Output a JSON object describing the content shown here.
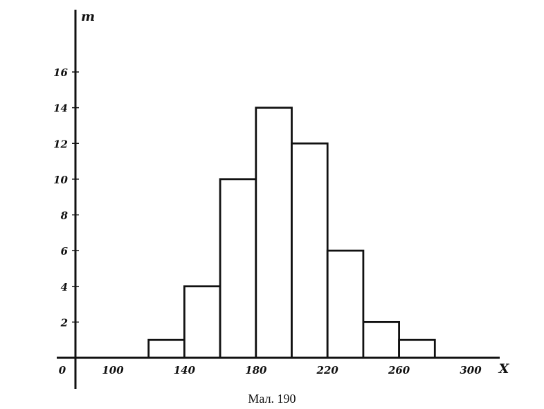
{
  "chart_data": {
    "type": "bar",
    "bins": [
      {
        "from": 120,
        "to": 140,
        "value": 1
      },
      {
        "from": 140,
        "to": 160,
        "value": 4
      },
      {
        "from": 160,
        "to": 180,
        "value": 10
      },
      {
        "from": 180,
        "to": 200,
        "value": 14
      },
      {
        "from": 200,
        "to": 220,
        "value": 12
      },
      {
        "from": 220,
        "to": 240,
        "value": 6
      },
      {
        "from": 240,
        "to": 260,
        "value": 2
      },
      {
        "from": 260,
        "to": 280,
        "value": 1
      }
    ],
    "xticks": [
      "100",
      "140",
      "180",
      "220",
      "260",
      "300"
    ],
    "yticks": [
      "2",
      "4",
      "6",
      "8",
      "10",
      "12",
      "14",
      "16"
    ],
    "origin_label": "0",
    "xlabel": "X",
    "ylabel": "m",
    "xlim": [
      100,
      300
    ],
    "ylim": [
      0,
      16
    ],
    "grid": false,
    "caption": "Мал. 190",
    "colors": {
      "stroke": "#111111",
      "fill": "#ffffff"
    }
  }
}
